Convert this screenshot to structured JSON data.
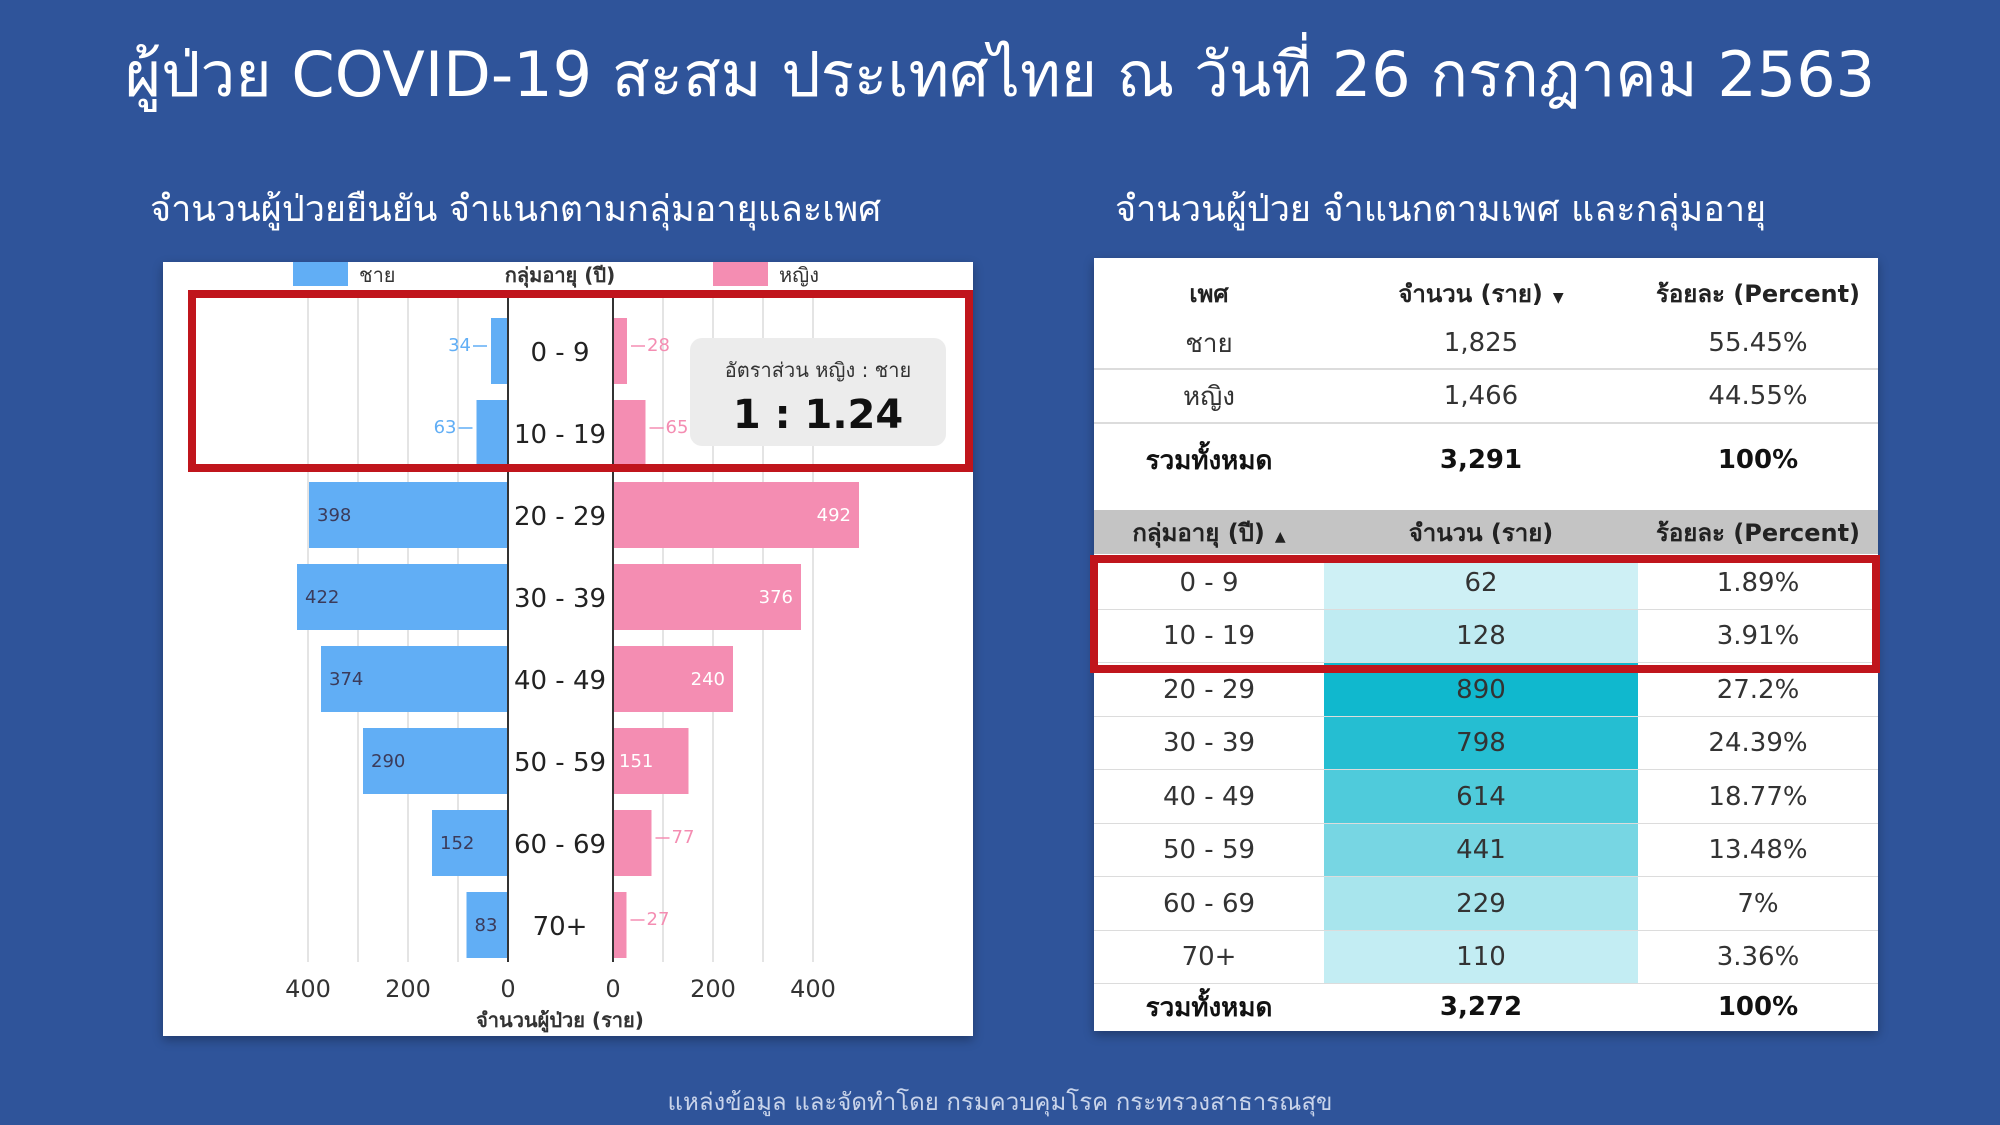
{
  "title": "ผู้ป่วย COVID-19 สะสม ประเทศไทย ณ วันที่ 26 กรกฎาคม 2563",
  "left_subtitle": "จำนวนผู้ป่วยยืนยัน จำแนกตามกลุ่มอายุและเพศ",
  "right_subtitle": "จำนวนผู้ป่วย จำแนกตามเพศ และกลุ่มอายุ",
  "footer": "แหล่งข้อมูล และจัดทำโดย  กรมควบคุมโรค กระทรวงสาธารณสุข",
  "ratio": {
    "label": "อัตราส่วน  หญิง : ชาย",
    "value": "1 : 1.24"
  },
  "colors": {
    "male": "#61aef5",
    "female": "#f48db2",
    "highlight": "#c0151c",
    "background": "#2f549a"
  },
  "chart_data": {
    "type": "bar",
    "orientation": "horizontal-pyramid",
    "categories": [
      "0 - 9",
      "10 - 19",
      "20 - 29",
      "30 - 39",
      "40 - 49",
      "50 - 59",
      "60 - 69",
      "70+"
    ],
    "series": [
      {
        "name": "ชาย",
        "values": [
          34,
          63,
          398,
          422,
          374,
          290,
          152,
          83
        ]
      },
      {
        "name": "หญิง",
        "values": [
          28,
          65,
          492,
          376,
          240,
          151,
          77,
          27
        ]
      }
    ],
    "center_label": "กลุ่มอายุ (ปี)",
    "xlabel": "จำนวนผู้ป่วย (ราย)",
    "left_ticks": [
      "400",
      "200",
      "0"
    ],
    "right_ticks": [
      "0",
      "200",
      "400"
    ],
    "xlim": [
      0,
      500
    ],
    "grid": true,
    "legend": "top"
  },
  "table": {
    "sex_header": [
      "เพศ",
      "จำนวน (ราย)",
      "ร้อยละ (Percent)"
    ],
    "sex_rows": [
      [
        "ชาย",
        "1,825",
        "55.45%"
      ],
      [
        "หญิง",
        "1,466",
        "44.55%"
      ]
    ],
    "sex_total": [
      "รวมทั้งหมด",
      "3,291",
      "100%"
    ],
    "age_header": [
      "กลุ่มอายุ (ปี)",
      "จำนวน (ราย)",
      "ร้อยละ (Percent)"
    ],
    "age_rows": [
      [
        "0 - 9",
        "62",
        "1.89%"
      ],
      [
        "10 - 19",
        "128",
        "3.91%"
      ],
      [
        "20 - 29",
        "890",
        "27.2%"
      ],
      [
        "30 - 39",
        "798",
        "24.39%"
      ],
      [
        "40 - 49",
        "614",
        "18.77%"
      ],
      [
        "50 - 59",
        "441",
        "13.48%"
      ],
      [
        "60 - 69",
        "229",
        "7%"
      ],
      [
        "70+",
        "110",
        "3.36%"
      ]
    ],
    "age_total": [
      "รวมทั้งหมด",
      "3,272",
      "100%"
    ],
    "age_values": [
      62,
      128,
      890,
      798,
      614,
      441,
      229,
      110
    ]
  }
}
